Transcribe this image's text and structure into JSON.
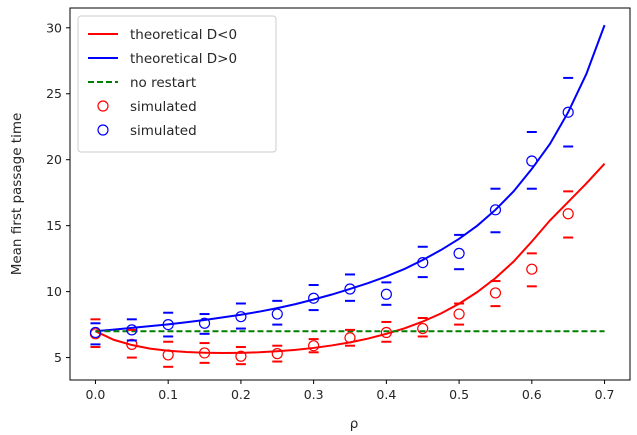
{
  "chart_data": {
    "type": "line",
    "title": "",
    "xlabel": "ρ",
    "ylabel": "Mean first passage time",
    "xlim": [
      -0.035,
      0.735
    ],
    "ylim": [
      3.3,
      31.5
    ],
    "xticks": [
      0.0,
      0.1,
      0.2,
      0.3,
      0.4,
      0.5,
      0.6,
      0.7
    ],
    "xtick_labels": [
      "0.0",
      "0.1",
      "0.2",
      "0.3",
      "0.4",
      "0.5",
      "0.6",
      "0.7"
    ],
    "yticks": [
      5,
      10,
      15,
      20,
      25,
      30
    ],
    "ytick_labels": [
      "5",
      "10",
      "15",
      "20",
      "25",
      "30"
    ],
    "grid": false,
    "legend_position": "top-left",
    "series": [
      {
        "name": "theoretical D<0",
        "kind": "line",
        "color": "#ff0000",
        "x": [
          0.0,
          0.025,
          0.05,
          0.075,
          0.1,
          0.125,
          0.15,
          0.175,
          0.2,
          0.225,
          0.25,
          0.275,
          0.3,
          0.325,
          0.35,
          0.375,
          0.4,
          0.425,
          0.45,
          0.475,
          0.5,
          0.525,
          0.55,
          0.575,
          0.6,
          0.625,
          0.65,
          0.675,
          0.7
        ],
        "y": [
          7.0,
          6.35,
          5.95,
          5.68,
          5.52,
          5.42,
          5.37,
          5.35,
          5.36,
          5.4,
          5.48,
          5.58,
          5.73,
          5.92,
          6.15,
          6.44,
          6.8,
          7.22,
          7.73,
          8.34,
          9.08,
          9.97,
          11.02,
          12.28,
          13.8,
          15.4,
          16.8,
          18.2,
          19.7
        ]
      },
      {
        "name": "theoretical D>0",
        "kind": "line",
        "color": "#0000ff",
        "x": [
          0.0,
          0.025,
          0.05,
          0.075,
          0.1,
          0.125,
          0.15,
          0.175,
          0.2,
          0.225,
          0.25,
          0.275,
          0.3,
          0.325,
          0.35,
          0.375,
          0.4,
          0.425,
          0.45,
          0.475,
          0.5,
          0.525,
          0.55,
          0.575,
          0.6,
          0.625,
          0.65,
          0.675,
          0.7
        ],
        "y": [
          7.0,
          7.12,
          7.25,
          7.38,
          7.52,
          7.68,
          7.85,
          8.05,
          8.25,
          8.48,
          8.75,
          9.05,
          9.4,
          9.78,
          10.2,
          10.65,
          11.15,
          11.72,
          12.4,
          13.15,
          14.0,
          15.0,
          16.2,
          17.6,
          19.3,
          21.2,
          23.6,
          26.5,
          30.2
        ]
      },
      {
        "name": "no restart",
        "kind": "dashed",
        "color": "#008000",
        "x": [
          0.0,
          0.7
        ],
        "y": [
          7.0,
          7.0
        ]
      },
      {
        "name": "simulated",
        "kind": "scatter",
        "color": "#ff0000",
        "x": [
          0.0,
          0.05,
          0.1,
          0.15,
          0.2,
          0.25,
          0.3,
          0.35,
          0.4,
          0.45,
          0.5,
          0.55,
          0.6,
          0.65
        ],
        "y": [
          6.8,
          6.0,
          5.2,
          5.35,
          5.1,
          5.3,
          5.9,
          6.5,
          6.9,
          7.2,
          8.3,
          9.9,
          11.7,
          15.9
        ],
        "err_low": [
          5.8,
          5.0,
          4.3,
          4.6,
          4.5,
          4.7,
          5.4,
          5.9,
          6.2,
          6.6,
          7.5,
          8.9,
          10.4,
          14.1
        ],
        "err_high": [
          7.9,
          7.1,
          6.2,
          6.1,
          5.8,
          5.9,
          6.4,
          7.1,
          7.7,
          8.0,
          9.1,
          10.8,
          12.9,
          17.6
        ]
      },
      {
        "name": "simulated",
        "kind": "scatter",
        "color": "#0000ff",
        "x": [
          0.0,
          0.05,
          0.1,
          0.15,
          0.2,
          0.25,
          0.3,
          0.35,
          0.4,
          0.45,
          0.5,
          0.55,
          0.6,
          0.65
        ],
        "y": [
          6.9,
          7.1,
          7.5,
          7.6,
          8.1,
          8.3,
          9.5,
          10.2,
          9.8,
          12.2,
          12.9,
          16.2,
          19.9,
          23.6
        ],
        "err_low": [
          6.0,
          6.3,
          6.6,
          6.8,
          7.2,
          7.5,
          8.6,
          9.3,
          9.0,
          11.1,
          11.7,
          14.5,
          17.8,
          21.0
        ],
        "err_high": [
          7.6,
          7.9,
          8.4,
          8.3,
          9.1,
          9.3,
          10.5,
          11.3,
          10.7,
          13.4,
          14.3,
          17.8,
          22.1,
          26.2
        ]
      }
    ]
  }
}
